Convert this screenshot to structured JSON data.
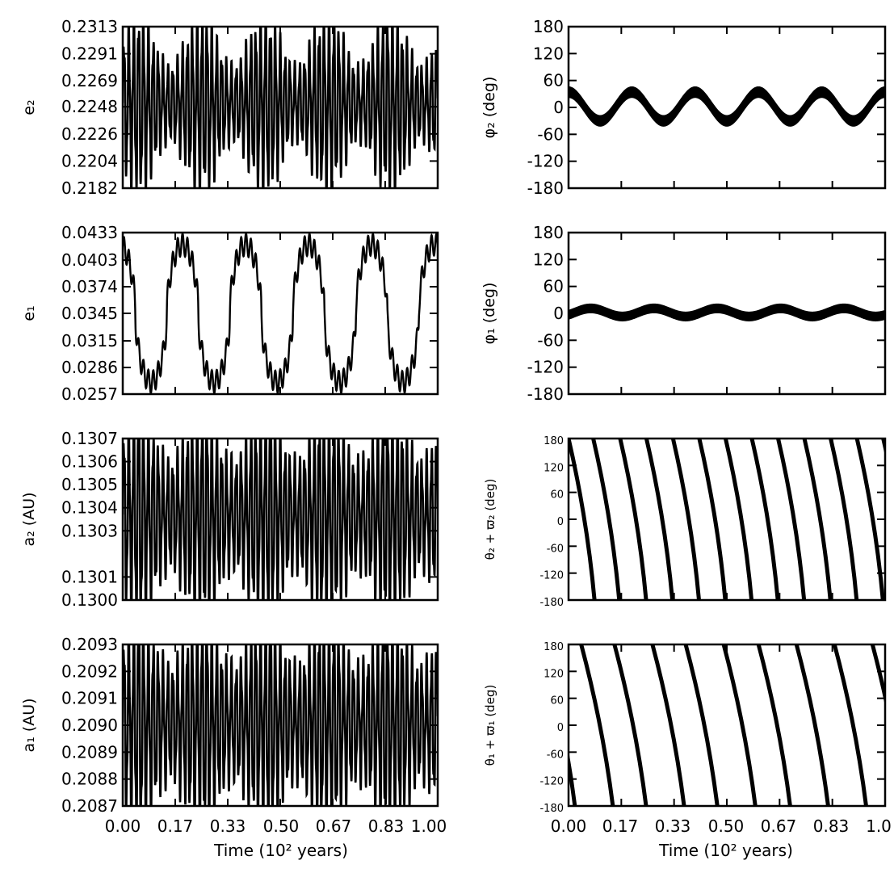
{
  "time_ticks": [
    "0.00",
    "0.17",
    "0.33",
    "0.50",
    "0.67",
    "0.83",
    "1.00"
  ],
  "time_ticks_right": [
    "0.00",
    "0.17",
    "0.33",
    "0.50",
    "0.67",
    "0.83",
    "1.0"
  ],
  "xlabel": "Time (10² years)",
  "chart_data": [
    {
      "type": "line",
      "id": "e2",
      "ylabel": "e₂",
      "xlim": [
        0,
        1
      ],
      "ylim": [
        0.2182,
        0.2313
      ],
      "yticks": [
        "0.2313",
        "0.2291",
        "0.2269",
        "0.2248",
        "0.2226",
        "0.2204",
        "0.2182"
      ],
      "ytick_values": [
        0.2313,
        0.2291,
        0.2269,
        0.2248,
        0.2226,
        0.2204,
        0.2182
      ],
      "signal": {
        "fast_period": 0.0155,
        "fast_amplitude_min": 0.0028,
        "fast_amplitude_max": 0.0066,
        "envelope_period": 0.2,
        "envelope_phase": 0.05,
        "mean": 0.2251
      }
    },
    {
      "type": "line",
      "id": "e1",
      "ylabel": "e₁",
      "xlim": [
        0,
        1
      ],
      "ylim": [
        0.0257,
        0.0433
      ],
      "yticks": [
        "0.0433",
        "0.0403",
        "0.0374",
        "0.0345",
        "0.0315",
        "0.0286",
        "0.0257"
      ],
      "ytick_values": [
        0.0433,
        0.0403,
        0.0374,
        0.0345,
        0.0315,
        0.0286,
        0.0257
      ],
      "signal": {
        "slow_period": 0.2,
        "slow_phase": -0.06,
        "mean": 0.0345,
        "slow_amplitude": 0.0075,
        "fast_period": 0.0155,
        "fast_amplitude": 0.0012
      }
    },
    {
      "type": "line",
      "id": "a2",
      "ylabel": "a₂ (AU)",
      "xlim": [
        0,
        1
      ],
      "ylim": [
        0.13,
        0.1307
      ],
      "yticks": [
        "0.1307",
        "0.1306",
        "0.1305",
        "0.1304",
        "0.1303",
        "0.1301",
        "0.1300"
      ],
      "ytick_values": [
        0.1307,
        0.1306,
        0.1305,
        0.1304,
        0.1303,
        0.1301,
        0.13
      ],
      "signal": {
        "fast_period": 0.0155,
        "fast_amplitude_min": 0.00022,
        "fast_amplitude_max": 0.00042,
        "envelope_period": 0.2,
        "envelope_phase": 0.05,
        "mean": 0.13037
      }
    },
    {
      "type": "line",
      "id": "a1",
      "ylabel": "a₁ (AU)",
      "xlim": [
        0,
        1
      ],
      "ylim": [
        0.2087,
        0.2093
      ],
      "yticks": [
        "0.2093",
        "0.2092",
        "0.2091",
        "0.2090",
        "0.2089",
        "0.2088",
        "0.2087"
      ],
      "ytick_values": [
        0.2093,
        0.2092,
        0.2091,
        0.209,
        0.2089,
        0.2088,
        0.2087
      ],
      "signal": {
        "fast_period": 0.0155,
        "fast_amplitude_min": 0.0002,
        "fast_amplitude_max": 0.00036,
        "envelope_period": 0.2,
        "envelope_phase": 0.05,
        "mean": 0.20901
      }
    },
    {
      "type": "scatter",
      "id": "phi2",
      "ylabel": "φ₂ (deg)",
      "xlim": [
        0,
        1
      ],
      "ylim": [
        -180,
        180
      ],
      "yticks": [
        "180",
        "120",
        "60",
        "0",
        "-60",
        "-120",
        "-180"
      ],
      "ytick_values": [
        180,
        120,
        60,
        0,
        -60,
        -120,
        -180
      ],
      "signal": {
        "period": 0.2,
        "amplitude": 32,
        "mean": 2,
        "phase_peak": 0.0,
        "band_width": 12
      }
    },
    {
      "type": "scatter",
      "id": "phi1",
      "ylabel": "φ₁ (deg)",
      "xlim": [
        0,
        1
      ],
      "ylim": [
        -180,
        180
      ],
      "yticks": [
        "180",
        "120",
        "60",
        "0",
        "-60",
        "-120",
        "-180"
      ],
      "ytick_values": [
        180,
        120,
        60,
        0,
        -60,
        -120,
        -180
      ],
      "signal": {
        "period": 0.2,
        "amplitude": 9,
        "mean": 2,
        "phase_peak": 0.07,
        "band_width": 10
      }
    },
    {
      "type": "line",
      "id": "theta2",
      "ylabel": "θ₂ + ϖ₂ (deg)",
      "xlim": [
        0,
        1
      ],
      "ylim": [
        -180,
        180
      ],
      "yticks": [
        "180",
        "120",
        "60",
        "0",
        "-60",
        "-120",
        "-180"
      ],
      "ytick_values": [
        180,
        120,
        60,
        0,
        -60,
        -120,
        -180
      ],
      "wraps": {
        "starts": [
          0.0,
          0.078,
          0.163,
          0.246,
          0.33,
          0.413,
          0.496,
          0.579,
          0.662,
          0.745,
          0.828,
          0.911,
          0.994
        ],
        "span": 0.082
      }
    },
    {
      "type": "line",
      "id": "theta1",
      "ylabel": "θ₁ + ϖ₁ (deg)",
      "xlim": [
        0,
        1
      ],
      "ylim": [
        -180,
        180
      ],
      "yticks": [
        "180",
        "120",
        "60",
        "0",
        "-60",
        "-120",
        "-180"
      ],
      "ytick_values": [
        180,
        120,
        60,
        0,
        -60,
        -120,
        -180
      ],
      "wraps": {
        "starts": [
          -0.08,
          0.04,
          0.145,
          0.265,
          0.37,
          0.49,
          0.6,
          0.72,
          0.84,
          0.96
        ],
        "span": 0.1
      }
    }
  ]
}
